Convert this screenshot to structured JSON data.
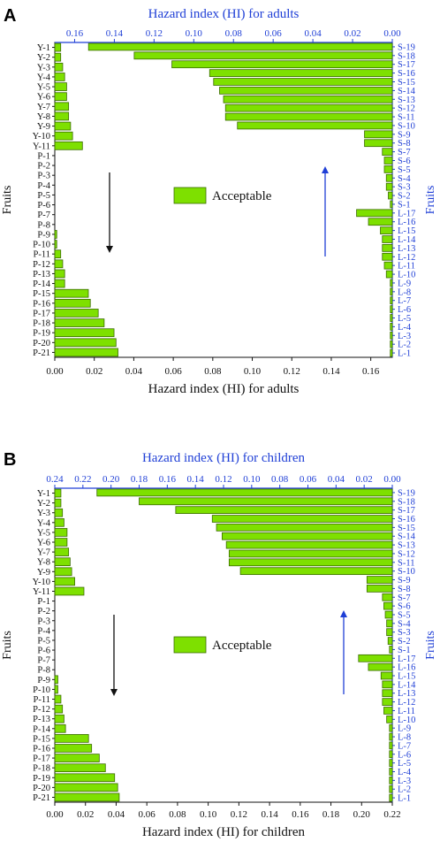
{
  "colors": {
    "bar_fill": "#7ee000",
    "bar_stroke": "#3a6b00",
    "top_axis": "#1f3fd6",
    "bottom_axis": "#111111",
    "down_arrow": "#111111",
    "up_arrow": "#1f3fd6"
  },
  "chart_data": [
    {
      "panel": "A",
      "type": "bar",
      "orientation": "horizontal",
      "legend": "Acceptable",
      "left_ylabel": "Fruits",
      "right_ylabel": "Fruits",
      "xlabel_bottom": "Hazard index (HI) for adults",
      "xlabel_top": "Hazard index (HI) for adults",
      "bottom_axis": {
        "min": 0,
        "max": 0.17,
        "ticks": [
          "0.00",
          "0.02",
          "0.04",
          "0.06",
          "0.08",
          "0.10",
          "0.12",
          "0.14",
          "0.16"
        ],
        "tick_values": [
          0,
          0.02,
          0.04,
          0.06,
          0.08,
          0.1,
          0.12,
          0.14,
          0.16
        ]
      },
      "top_axis": {
        "min": 0,
        "max": 0.17,
        "reversed": true,
        "ticks": [
          "0.16",
          "0.14",
          "0.12",
          "0.10",
          "0.08",
          "0.06",
          "0.04",
          "0.02",
          "0.00"
        ],
        "tick_values": [
          0.16,
          0.14,
          0.12,
          0.1,
          0.08,
          0.06,
          0.04,
          0.02,
          0.0
        ]
      },
      "left_categories": [
        "Y-1",
        "Y-2",
        "Y-3",
        "Y-4",
        "Y-5",
        "Y-6",
        "Y-7",
        "Y-8",
        "Y-9",
        "Y-10",
        "Y-11",
        "P-1",
        "P-2",
        "P-3",
        "P-4",
        "P-5",
        "P-6",
        "P-7",
        "P-8",
        "P-9",
        "P-10",
        "P-11",
        "P-12",
        "P-13",
        "P-14",
        "P-15",
        "P-16",
        "P-17",
        "P-18",
        "P-19",
        "P-20",
        "P-21"
      ],
      "left_values": [
        0.003,
        0.003,
        0.004,
        0.005,
        0.006,
        0.006,
        0.007,
        0.007,
        0.008,
        0.009,
        0.014,
        0.0,
        0.0,
        0.0,
        0.0,
        0.0,
        0.0,
        0.0,
        0.0,
        0.001,
        0.001,
        0.003,
        0.004,
        0.005,
        0.005,
        0.017,
        0.018,
        0.022,
        0.025,
        0.03,
        0.031,
        0.032
      ],
      "right_categories": [
        "S-19",
        "S-18",
        "S-17",
        "S-16",
        "S-15",
        "S-14",
        "S-13",
        "S-12",
        "S-11",
        "S-10",
        "S-9",
        "S-8",
        "S-7",
        "S-6",
        "S-5",
        "S-4",
        "S-3",
        "S-2",
        "S-1",
        "L-17",
        "L-16",
        "L-15",
        "L-14",
        "L-13",
        "L-12",
        "L-11",
        "L-10",
        "L-9",
        "L-8",
        "L-7",
        "L-6",
        "L-5",
        "L-4",
        "L-3",
        "L-2",
        "L-1"
      ],
      "right_values": [
        0.153,
        0.13,
        0.111,
        0.092,
        0.09,
        0.087,
        0.085,
        0.084,
        0.084,
        0.078,
        0.014,
        0.014,
        0.005,
        0.004,
        0.004,
        0.003,
        0.003,
        0.002,
        0.001,
        0.018,
        0.012,
        0.006,
        0.005,
        0.005,
        0.005,
        0.004,
        0.003,
        0.001,
        0.001,
        0.001,
        0.001,
        0.001,
        0.001,
        0.001,
        0.001,
        0.001
      ]
    },
    {
      "panel": "B",
      "type": "bar",
      "orientation": "horizontal",
      "legend": "Acceptable",
      "left_ylabel": "Fruits",
      "right_ylabel": "Fruits",
      "xlabel_bottom": "Hazard index (HI) for children",
      "xlabel_top": "Hazard index (HI) for children",
      "bottom_axis": {
        "min": 0,
        "max": 0.22,
        "ticks": [
          "0.00",
          "0.02",
          "0.04",
          "0.06",
          "0.08",
          "0.10",
          "0.12",
          "0.14",
          "0.16",
          "0.18",
          "0.20",
          "0.22"
        ],
        "tick_values": [
          0,
          0.02,
          0.04,
          0.06,
          0.08,
          0.1,
          0.12,
          0.14,
          0.16,
          0.18,
          0.2,
          0.22
        ]
      },
      "top_axis": {
        "min": 0,
        "max": 0.24,
        "reversed": true,
        "ticks": [
          "0.24",
          "0.22",
          "0.20",
          "0.18",
          "0.16",
          "0.14",
          "0.12",
          "0.10",
          "0.08",
          "0.06",
          "0.04",
          "0.02",
          "0.00"
        ],
        "tick_values": [
          0.24,
          0.22,
          0.2,
          0.18,
          0.16,
          0.14,
          0.12,
          0.1,
          0.08,
          0.06,
          0.04,
          0.02,
          0.0
        ]
      },
      "left_categories": [
        "Y-1",
        "Y-2",
        "Y-3",
        "Y-4",
        "Y-5",
        "Y-6",
        "Y-7",
        "Y-8",
        "Y-9",
        "Y-10",
        "Y-11",
        "P-1",
        "P-2",
        "P-3",
        "P-4",
        "P-5",
        "P-6",
        "P-7",
        "P-8",
        "P-9",
        "P-10",
        "P-11",
        "P-12",
        "P-13",
        "P-14",
        "P-15",
        "P-16",
        "P-17",
        "P-18",
        "P-19",
        "P-20",
        "P-21"
      ],
      "left_values": [
        0.004,
        0.004,
        0.005,
        0.006,
        0.008,
        0.008,
        0.009,
        0.01,
        0.011,
        0.013,
        0.019,
        0.0,
        0.0,
        0.0,
        0.0,
        0.0,
        0.0,
        0.0,
        0.0,
        0.002,
        0.002,
        0.004,
        0.005,
        0.006,
        0.007,
        0.022,
        0.024,
        0.029,
        0.033,
        0.039,
        0.041,
        0.042
      ],
      "right_categories": [
        "S-19",
        "S-18",
        "S-17",
        "S-16",
        "S-15",
        "S-14",
        "S-13",
        "S-12",
        "S-11",
        "S-10",
        "S-9",
        "S-8",
        "S-7",
        "S-6",
        "S-5",
        "S-4",
        "S-3",
        "S-2",
        "S-1",
        "L-17",
        "L-16",
        "L-15",
        "L-14",
        "L-13",
        "L-12",
        "L-11",
        "L-10",
        "L-9",
        "L-8",
        "L-7",
        "L-6",
        "L-5",
        "L-4",
        "L-3",
        "L-2",
        "L-1"
      ],
      "right_values": [
        0.21,
        0.18,
        0.154,
        0.128,
        0.125,
        0.121,
        0.118,
        0.116,
        0.116,
        0.108,
        0.018,
        0.018,
        0.007,
        0.006,
        0.005,
        0.004,
        0.004,
        0.003,
        0.002,
        0.024,
        0.017,
        0.008,
        0.007,
        0.007,
        0.007,
        0.006,
        0.004,
        0.002,
        0.002,
        0.002,
        0.002,
        0.002,
        0.002,
        0.002,
        0.002,
        0.002
      ]
    }
  ]
}
